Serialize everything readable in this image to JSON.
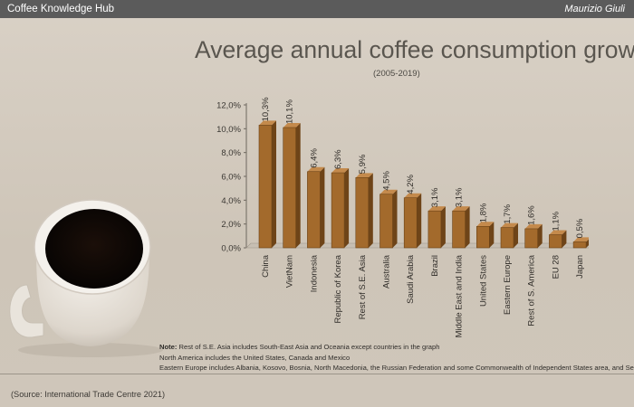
{
  "header": {
    "brand": "Coffee Knowledge Hub",
    "author": "Maurizio Giuli"
  },
  "chart_data": {
    "type": "bar",
    "title": "Average annual coffee consumption growth",
    "subtitle": "(2005-2019)",
    "categories": [
      "China",
      "VietNam",
      "Indonesia",
      "Republic of Korea",
      "Rest of S.E. Asia",
      "Australia",
      "Saudi Arabia",
      "Brazil",
      "Middle East and India",
      "United States",
      "Eastern Europe",
      "Rest of S. America",
      "EU 28",
      "Japan"
    ],
    "values": [
      10.3,
      10.1,
      6.4,
      6.3,
      5.9,
      4.5,
      4.2,
      3.1,
      3.1,
      1.8,
      1.7,
      1.6,
      1.1,
      0.5
    ],
    "data_labels": [
      "10,3%",
      "10,1%",
      "6,4%",
      "6,3%",
      "5,9%",
      "4,5%",
      "4,2%",
      "3,1%",
      "3,1%",
      "1,8%",
      "1,7%",
      "1,6%",
      "1,1%",
      "0,5%"
    ],
    "yticks": [
      "0,0%",
      "2,0%",
      "4,0%",
      "6,0%",
      "8,0%",
      "10,0%",
      "12,0%"
    ],
    "ylim": [
      0,
      12
    ],
    "xlabel": "",
    "ylabel": "",
    "grid": false,
    "bar_color": "#a36a2c"
  },
  "notes": {
    "label": "Note:",
    "line1": "Rest of S.E. Asia includes South-East Asia and Oceania except countries in the graph",
    "line2": "North America includes the United States, Canada and Mexico",
    "line3": "Eastern Europe includes Albania, Kosovo, Bosnia, North Macedonia, the Russian Federation and some Commonwealth of Independent States area, and Serbia"
  },
  "source": "(Source: International Trade Centre 2021)",
  "colors": {
    "topbar": "#5b5b5b",
    "background": "#d6cec2",
    "bar": "#a36a2c"
  },
  "illustration": {
    "icon": "coffee-cup-icon"
  }
}
